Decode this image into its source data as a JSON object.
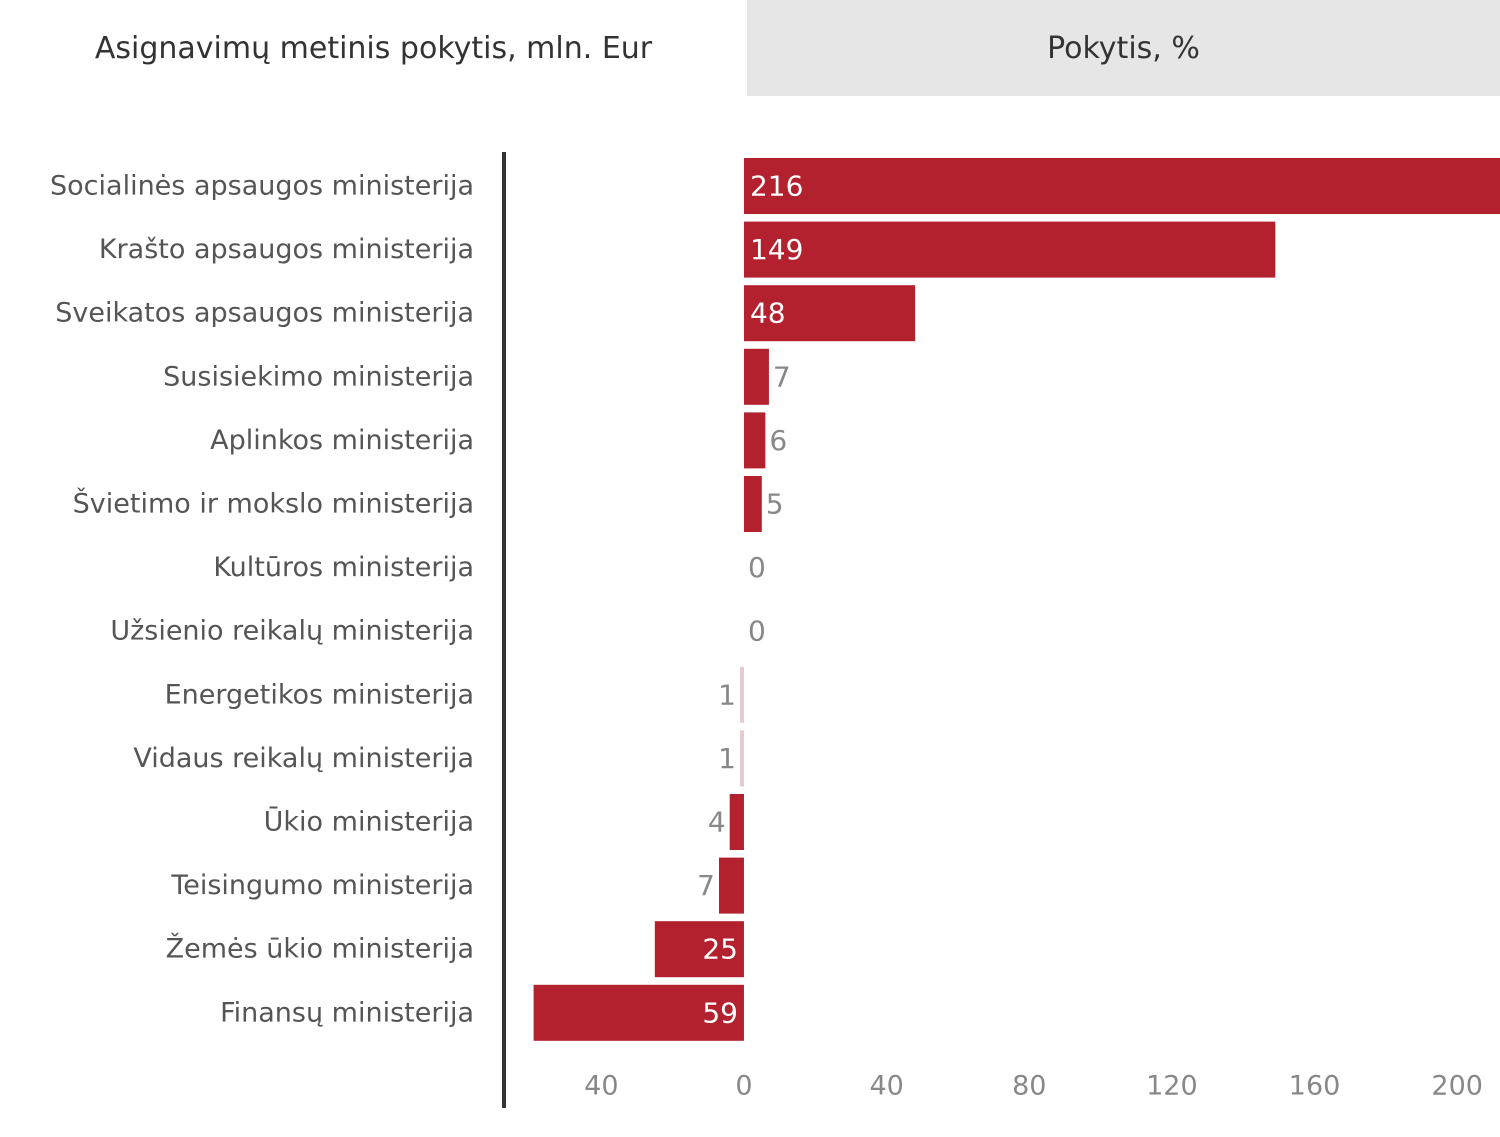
{
  "tabs": {
    "active_label": "Asignavimų metinis pokytis, mln. Eur",
    "inactive_label": "Pokytis, %"
  },
  "colors": {
    "bar": "#b3212e",
    "bar_light": "#e8c9cd",
    "axis": "#333333"
  },
  "chart_data": {
    "type": "bar",
    "orientation": "horizontal",
    "title": "",
    "xlabel": "",
    "ylabel": "",
    "categories": [
      "Socialinės apsaugos ministerija",
      "Krašto apsaugos ministerija",
      "Sveikatos apsaugos ministerija",
      "Susisiekimo ministerija",
      "Aplinkos ministerija",
      "Švietimo ir mokslo ministerija",
      "Kultūros ministerija",
      "Užsienio reikalų ministerija",
      "Energetikos ministerija",
      "Vidaus reikalų ministerija",
      "Ūkio ministerija",
      "Teisingumo ministerija",
      "Žemės ūkio ministerija",
      "Finansų ministerija"
    ],
    "values": [
      216,
      149,
      48,
      7,
      6,
      5,
      0,
      0,
      -1,
      -1,
      -4,
      -7,
      -25,
      -59
    ],
    "value_labels": [
      "216",
      "149",
      "48",
      "7",
      "6",
      "5",
      "0",
      "0",
      "1",
      "1",
      "4",
      "7",
      "25",
      "59"
    ],
    "xticks": [
      -40,
      0,
      40,
      80,
      120,
      160,
      200
    ],
    "xtick_labels": [
      "40",
      "0",
      "40",
      "80",
      "120",
      "160",
      "200"
    ],
    "xlim": [
      -60,
      212
    ],
    "grid": false,
    "legend": "none"
  }
}
